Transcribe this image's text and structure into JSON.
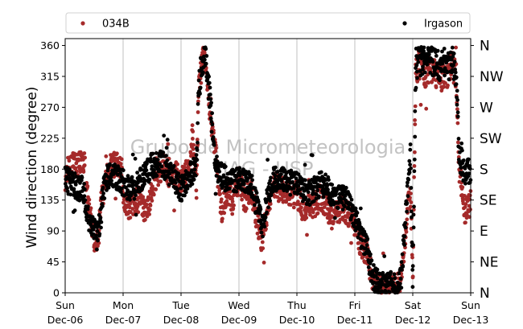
{
  "chart_data": {
    "type": "scatter",
    "ylabel": "Wind direction (degree)",
    "ylim": [
      0,
      370
    ],
    "yticks": [
      0,
      45,
      90,
      135,
      180,
      225,
      270,
      315,
      360
    ],
    "x_range_days": [
      0,
      7
    ],
    "xticks": [
      {
        "day": 0,
        "weekday": "Sun",
        "date": "Dec-06"
      },
      {
        "day": 1,
        "weekday": "Mon",
        "date": "Dec-07"
      },
      {
        "day": 2,
        "weekday": "Tue",
        "date": "Dec-08"
      },
      {
        "day": 3,
        "weekday": "Wed",
        "date": "Dec-09"
      },
      {
        "day": 4,
        "weekday": "Thu",
        "date": "Dec-10"
      },
      {
        "day": 5,
        "weekday": "Fri",
        "date": "Dec-11"
      },
      {
        "day": 6,
        "weekday": "Sat",
        "date": "Dec-12"
      },
      {
        "day": 7,
        "weekday": "Sun",
        "date": "Dec-13"
      }
    ],
    "compass_ticks": [
      {
        "deg": 0,
        "label": "N"
      },
      {
        "deg": 45,
        "label": "NE"
      },
      {
        "deg": 90,
        "label": "E"
      },
      {
        "deg": 135,
        "label": "SE"
      },
      {
        "deg": 180,
        "label": "S"
      },
      {
        "deg": 225,
        "label": "SW"
      },
      {
        "deg": 270,
        "label": "W"
      },
      {
        "deg": 315,
        "label": "NW"
      },
      {
        "deg": 360,
        "label": "N"
      }
    ],
    "grid": "vertical-at-day-ticks",
    "legend": "top",
    "watermark": [
      "Grupo de Micrometeorologia",
      "IAG - USP"
    ],
    "series": [
      {
        "name": "034B",
        "color": "#a52a2a",
        "profile": [
          [
            0.0,
            165
          ],
          [
            0.05,
            186
          ],
          [
            0.15,
            186
          ],
          [
            0.25,
            186
          ],
          [
            0.34,
            186
          ],
          [
            0.36,
            150
          ],
          [
            0.45,
            110
          ],
          [
            0.52,
            70
          ],
          [
            0.58,
            85
          ],
          [
            0.62,
            130
          ],
          [
            0.68,
            150
          ],
          [
            0.74,
            175
          ],
          [
            0.78,
            186
          ],
          [
            0.85,
            186
          ],
          [
            0.98,
            186
          ],
          [
            1.0,
            140
          ],
          [
            1.1,
            125
          ],
          [
            1.2,
            130
          ],
          [
            1.3,
            140
          ],
          [
            1.4,
            110
          ],
          [
            1.5,
            150
          ],
          [
            1.6,
            175
          ],
          [
            1.7,
            185
          ],
          [
            1.8,
            170
          ],
          [
            1.9,
            175
          ],
          [
            2.0,
            160
          ],
          [
            2.1,
            180
          ],
          [
            2.15,
            190
          ],
          [
            2.2,
            230
          ],
          [
            2.27,
            150
          ],
          [
            2.3,
            295
          ],
          [
            2.35,
            330
          ],
          [
            2.4,
            350
          ],
          [
            2.45,
            300
          ],
          [
            2.5,
            265
          ],
          [
            2.55,
            235
          ],
          [
            2.6,
            200
          ],
          [
            2.7,
            120
          ],
          [
            2.8,
            150
          ],
          [
            2.9,
            130
          ],
          [
            3.0,
            165
          ],
          [
            3.1,
            135
          ],
          [
            3.2,
            150
          ],
          [
            3.3,
            110
          ],
          [
            3.4,
            75
          ],
          [
            3.5,
            130
          ],
          [
            3.6,
            160
          ],
          [
            3.7,
            150
          ],
          [
            3.8,
            150
          ],
          [
            3.9,
            140
          ],
          [
            4.0,
            145
          ],
          [
            4.1,
            120
          ],
          [
            4.2,
            130
          ],
          [
            4.3,
            125
          ],
          [
            4.4,
            140
          ],
          [
            4.5,
            130
          ],
          [
            4.6,
            110
          ],
          [
            4.7,
            120
          ],
          [
            4.8,
            125
          ],
          [
            4.9,
            115
          ],
          [
            5.0,
            100
          ],
          [
            5.1,
            70
          ],
          [
            5.2,
            60
          ],
          [
            5.25,
            40
          ],
          [
            5.3,
            20
          ],
          [
            5.4,
            10
          ],
          [
            5.5,
            5
          ],
          [
            5.6,
            10
          ],
          [
            5.7,
            8
          ],
          [
            5.8,
            15
          ],
          [
            5.92,
            130
          ],
          [
            5.96,
            150
          ],
          [
            6.0,
            20
          ],
          [
            6.05,
            320
          ],
          [
            6.1,
            330
          ],
          [
            6.2,
            320
          ],
          [
            6.3,
            330
          ],
          [
            6.4,
            320
          ],
          [
            6.5,
            315
          ],
          [
            6.6,
            320
          ],
          [
            6.7,
            330
          ],
          [
            6.75,
            310
          ],
          [
            6.8,
            180
          ],
          [
            6.85,
            150
          ],
          [
            6.9,
            120
          ],
          [
            7.0,
            130
          ]
        ]
      },
      {
        "name": "Irgason",
        "color": "#000000",
        "profile": [
          [
            0.0,
            165
          ],
          [
            0.1,
            160
          ],
          [
            0.2,
            155
          ],
          [
            0.3,
            150
          ],
          [
            0.35,
            135
          ],
          [
            0.4,
            110
          ],
          [
            0.45,
            100
          ],
          [
            0.5,
            90
          ],
          [
            0.55,
            80
          ],
          [
            0.6,
            100
          ],
          [
            0.65,
            140
          ],
          [
            0.7,
            165
          ],
          [
            0.78,
            170
          ],
          [
            0.85,
            170
          ],
          [
            0.95,
            165
          ],
          [
            1.0,
            160
          ],
          [
            1.1,
            150
          ],
          [
            1.2,
            155
          ],
          [
            1.3,
            165
          ],
          [
            1.4,
            175
          ],
          [
            1.5,
            185
          ],
          [
            1.6,
            190
          ],
          [
            1.7,
            185
          ],
          [
            1.8,
            175
          ],
          [
            1.9,
            165
          ],
          [
            2.0,
            150
          ],
          [
            2.1,
            165
          ],
          [
            2.2,
            175
          ],
          [
            2.25,
            185
          ],
          [
            2.28,
            195
          ],
          [
            2.3,
            290
          ],
          [
            2.35,
            330
          ],
          [
            2.4,
            350
          ],
          [
            2.45,
            320
          ],
          [
            2.5,
            280
          ],
          [
            2.55,
            230
          ],
          [
            2.6,
            185
          ],
          [
            2.7,
            170
          ],
          [
            2.8,
            165
          ],
          [
            2.9,
            160
          ],
          [
            3.0,
            170
          ],
          [
            3.1,
            160
          ],
          [
            3.2,
            160
          ],
          [
            3.3,
            130
          ],
          [
            3.4,
            95
          ],
          [
            3.5,
            140
          ],
          [
            3.6,
            165
          ],
          [
            3.7,
            165
          ],
          [
            3.8,
            165
          ],
          [
            3.9,
            160
          ],
          [
            4.0,
            160
          ],
          [
            4.1,
            150
          ],
          [
            4.2,
            145
          ],
          [
            4.3,
            150
          ],
          [
            4.4,
            160
          ],
          [
            4.5,
            155
          ],
          [
            4.6,
            145
          ],
          [
            4.7,
            140
          ],
          [
            4.8,
            140
          ],
          [
            4.9,
            130
          ],
          [
            5.0,
            110
          ],
          [
            5.1,
            80
          ],
          [
            5.2,
            70
          ],
          [
            5.25,
            45
          ],
          [
            5.3,
            25
          ],
          [
            5.4,
            15
          ],
          [
            5.5,
            10
          ],
          [
            5.6,
            15
          ],
          [
            5.7,
            10
          ],
          [
            5.8,
            20
          ],
          [
            5.92,
            160
          ],
          [
            5.96,
            200
          ],
          [
            6.0,
            20
          ],
          [
            6.05,
            320
          ],
          [
            6.1,
            340
          ],
          [
            6.2,
            335
          ],
          [
            6.3,
            340
          ],
          [
            6.4,
            335
          ],
          [
            6.5,
            330
          ],
          [
            6.6,
            340
          ],
          [
            6.7,
            335
          ],
          [
            6.75,
            320
          ],
          [
            6.8,
            195
          ],
          [
            6.85,
            190
          ],
          [
            6.9,
            170
          ],
          [
            7.0,
            180
          ]
        ]
      }
    ]
  }
}
